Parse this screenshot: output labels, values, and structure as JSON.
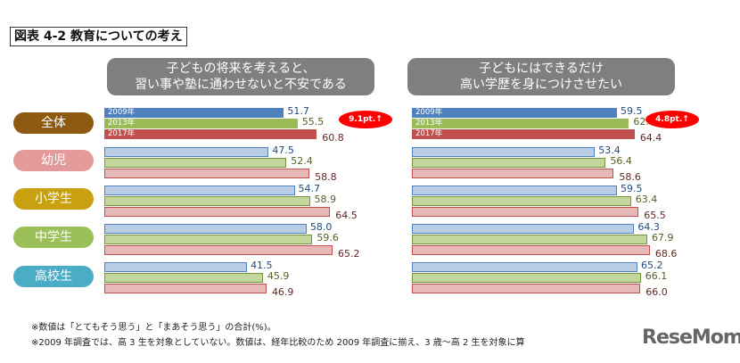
{
  "title": "図表 4-2 教育についての考え",
  "chart_data": [
    {
      "type": "bar",
      "orientation": "horizontal",
      "title_lines": [
        "子どもの将来を考えると、",
        "習い事や塾に通わせないと不安である"
      ],
      "categories": [
        "全体",
        "幼児",
        "小学生",
        "中学生",
        "高校生"
      ],
      "series": [
        {
          "name": "2009年",
          "values": [
            51.7,
            47.5,
            54.7,
            58.0,
            41.5
          ]
        },
        {
          "name": "2013年",
          "values": [
            55.5,
            52.4,
            58.9,
            59.6,
            45.9
          ]
        },
        {
          "name": "2017年",
          "values": [
            60.8,
            58.8,
            64.5,
            65.2,
            46.9
          ]
        }
      ],
      "annotation": "9.1pt.↑"
    },
    {
      "type": "bar",
      "orientation": "horizontal",
      "title_lines": [
        "子どもにはできるだけ",
        "高い学歴を身につけさせたい"
      ],
      "categories": [
        "全体",
        "幼児",
        "小学生",
        "中学生",
        "高校生"
      ],
      "series": [
        {
          "name": "2009年",
          "values": [
            59.5,
            53.4,
            59.5,
            64.3,
            65.2
          ]
        },
        {
          "name": "2013年",
          "values": [
            62.8,
            56.4,
            63.4,
            67.9,
            66.1
          ]
        },
        {
          "name": "2017年",
          "values": [
            64.4,
            58.6,
            65.5,
            68.6,
            66.0
          ]
        }
      ],
      "annotation": "4.8pt.↑"
    }
  ],
  "category_colors": [
    "#8c5a12",
    "#e39a9a",
    "#c9a010",
    "#9bc05a",
    "#4bacc6"
  ],
  "series_colors": {
    "overall": [
      "#4f81bd",
      "#9bbb59",
      "#c0504d"
    ],
    "groups": [
      "#b9cde5",
      "#c3d69b",
      "#e6b9b8"
    ],
    "labels": [
      "#1f497d",
      "#4f6228",
      "#632523"
    ]
  },
  "notes": [
    "※数値は「とてもそう思う」と「まあそう思う」の合計(%)。",
    "※2009 年調査では、高 3 生を対象としていない。数値は、経年比較のため 2009 年調査に揃え、3 歳～高 2 生を対象に算"
  ],
  "logo": "ReseMom"
}
